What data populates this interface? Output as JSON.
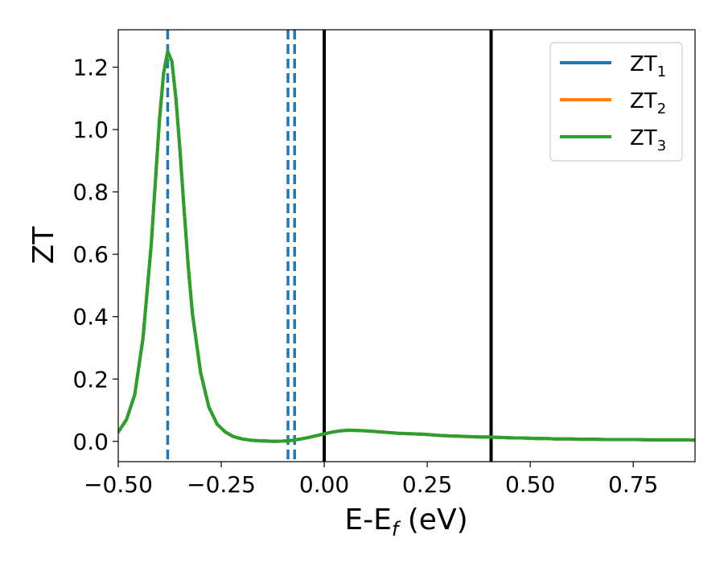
{
  "chart_data": {
    "type": "line",
    "title": "",
    "xlabel": "E-E",
    "xlabel_sub": "f",
    "xlabel_unit": " (eV)",
    "ylabel": "ZT",
    "xlim": [
      -0.5,
      0.9
    ],
    "ylim": [
      -0.065,
      1.32
    ],
    "xticks": [
      -0.5,
      -0.25,
      0.0,
      0.25,
      0.5,
      0.75
    ],
    "xtick_labels": [
      "−0.50",
      "−0.25",
      "0.00",
      "0.25",
      "0.50",
      "0.75"
    ],
    "yticks": [
      0.0,
      0.2,
      0.4,
      0.6,
      0.8,
      1.0,
      1.2
    ],
    "ytick_labels": [
      "0.0",
      "0.2",
      "0.4",
      "0.6",
      "0.8",
      "1.0",
      "1.2"
    ],
    "grid": false,
    "legend_position": "top-right",
    "series": [
      {
        "name": "ZT",
        "name_sub": "1",
        "color": "#1f77b4",
        "x": [
          -0.5,
          -0.48,
          -0.46,
          -0.44,
          -0.42,
          -0.41,
          -0.4,
          -0.39,
          -0.38,
          -0.37,
          -0.36,
          -0.35,
          -0.34,
          -0.33,
          -0.32,
          -0.3,
          -0.28,
          -0.26,
          -0.24,
          -0.22,
          -0.2,
          -0.18,
          -0.16,
          -0.14,
          -0.12,
          -0.1,
          -0.08,
          -0.06,
          -0.04,
          -0.02,
          0.0,
          0.02,
          0.04,
          0.06,
          0.08,
          0.1,
          0.12,
          0.14,
          0.16,
          0.18,
          0.2,
          0.22,
          0.24,
          0.26,
          0.28,
          0.3,
          0.32,
          0.34,
          0.36,
          0.38,
          0.4,
          0.42,
          0.44,
          0.46,
          0.48,
          0.5,
          0.52,
          0.54,
          0.56,
          0.58,
          0.6,
          0.62,
          0.64,
          0.66,
          0.68,
          0.7,
          0.72,
          0.74,
          0.76,
          0.78,
          0.8,
          0.82,
          0.84,
          0.86,
          0.88,
          0.9
        ],
        "y": [
          0.03,
          0.07,
          0.15,
          0.33,
          0.63,
          0.83,
          1.03,
          1.18,
          1.25,
          1.22,
          1.1,
          0.93,
          0.74,
          0.56,
          0.41,
          0.22,
          0.11,
          0.055,
          0.03,
          0.015,
          0.008,
          0.004,
          0.002,
          0.001,
          0.0,
          0.001,
          0.003,
          0.007,
          0.012,
          0.018,
          0.024,
          0.03,
          0.034,
          0.036,
          0.035,
          0.034,
          0.032,
          0.03,
          0.028,
          0.026,
          0.025,
          0.024,
          0.023,
          0.021,
          0.019,
          0.018,
          0.017,
          0.016,
          0.015,
          0.014,
          0.014,
          0.013,
          0.012,
          0.011,
          0.011,
          0.01,
          0.009,
          0.009,
          0.008,
          0.008,
          0.008,
          0.007,
          0.007,
          0.007,
          0.006,
          0.006,
          0.006,
          0.006,
          0.006,
          0.005,
          0.005,
          0.005,
          0.005,
          0.005,
          0.005,
          0.004
        ]
      },
      {
        "name": "ZT",
        "name_sub": "2",
        "color": "#ff7f0e",
        "x": [
          -0.5,
          -0.48,
          -0.46,
          -0.44,
          -0.42,
          -0.41,
          -0.4,
          -0.39,
          -0.38,
          -0.37,
          -0.36,
          -0.35,
          -0.34,
          -0.33,
          -0.32,
          -0.3,
          -0.28,
          -0.26,
          -0.24,
          -0.22,
          -0.2,
          -0.18,
          -0.16,
          -0.14,
          -0.12,
          -0.1,
          -0.08,
          -0.06,
          -0.04,
          -0.02,
          0.0,
          0.02,
          0.04,
          0.06,
          0.08,
          0.1,
          0.12,
          0.14,
          0.16,
          0.18,
          0.2,
          0.22,
          0.24,
          0.26,
          0.28,
          0.3,
          0.32,
          0.34,
          0.36,
          0.38,
          0.4,
          0.42,
          0.44,
          0.46,
          0.48,
          0.5,
          0.52,
          0.54,
          0.56,
          0.58,
          0.6,
          0.62,
          0.64,
          0.66,
          0.68,
          0.7,
          0.72,
          0.74,
          0.76,
          0.78,
          0.8,
          0.82,
          0.84,
          0.86,
          0.88,
          0.9
        ],
        "y": [
          0.03,
          0.07,
          0.15,
          0.33,
          0.63,
          0.83,
          1.03,
          1.18,
          1.25,
          1.22,
          1.1,
          0.93,
          0.74,
          0.56,
          0.41,
          0.22,
          0.11,
          0.055,
          0.03,
          0.015,
          0.008,
          0.004,
          0.002,
          0.001,
          0.0,
          0.001,
          0.003,
          0.007,
          0.012,
          0.018,
          0.024,
          0.03,
          0.034,
          0.036,
          0.035,
          0.034,
          0.032,
          0.03,
          0.028,
          0.026,
          0.025,
          0.024,
          0.023,
          0.021,
          0.019,
          0.018,
          0.017,
          0.016,
          0.015,
          0.014,
          0.014,
          0.013,
          0.012,
          0.011,
          0.011,
          0.01,
          0.009,
          0.009,
          0.008,
          0.008,
          0.008,
          0.007,
          0.007,
          0.007,
          0.006,
          0.006,
          0.006,
          0.006,
          0.006,
          0.005,
          0.005,
          0.005,
          0.005,
          0.005,
          0.005,
          0.004
        ]
      },
      {
        "name": "ZT",
        "name_sub": "3",
        "color": "#2ca02c",
        "x": [
          -0.5,
          -0.48,
          -0.46,
          -0.44,
          -0.42,
          -0.41,
          -0.4,
          -0.39,
          -0.38,
          -0.37,
          -0.36,
          -0.35,
          -0.34,
          -0.33,
          -0.32,
          -0.3,
          -0.28,
          -0.26,
          -0.24,
          -0.22,
          -0.2,
          -0.18,
          -0.16,
          -0.14,
          -0.12,
          -0.1,
          -0.08,
          -0.06,
          -0.04,
          -0.02,
          0.0,
          0.02,
          0.04,
          0.06,
          0.08,
          0.1,
          0.12,
          0.14,
          0.16,
          0.18,
          0.2,
          0.22,
          0.24,
          0.26,
          0.28,
          0.3,
          0.32,
          0.34,
          0.36,
          0.38,
          0.4,
          0.42,
          0.44,
          0.46,
          0.48,
          0.5,
          0.52,
          0.54,
          0.56,
          0.58,
          0.6,
          0.62,
          0.64,
          0.66,
          0.68,
          0.7,
          0.72,
          0.74,
          0.76,
          0.78,
          0.8,
          0.82,
          0.84,
          0.86,
          0.88,
          0.9
        ],
        "y": [
          0.03,
          0.07,
          0.15,
          0.33,
          0.63,
          0.83,
          1.03,
          1.18,
          1.25,
          1.22,
          1.1,
          0.93,
          0.74,
          0.56,
          0.41,
          0.22,
          0.11,
          0.055,
          0.03,
          0.015,
          0.008,
          0.004,
          0.002,
          0.001,
          0.0,
          0.001,
          0.003,
          0.007,
          0.012,
          0.018,
          0.024,
          0.03,
          0.034,
          0.036,
          0.035,
          0.034,
          0.032,
          0.03,
          0.028,
          0.026,
          0.025,
          0.024,
          0.023,
          0.021,
          0.019,
          0.018,
          0.017,
          0.016,
          0.015,
          0.014,
          0.014,
          0.013,
          0.012,
          0.011,
          0.011,
          0.01,
          0.009,
          0.009,
          0.008,
          0.008,
          0.008,
          0.007,
          0.007,
          0.007,
          0.006,
          0.006,
          0.006,
          0.006,
          0.006,
          0.005,
          0.005,
          0.005,
          0.005,
          0.005,
          0.005,
          0.004
        ]
      }
    ],
    "vlines": [
      {
        "x": -0.38,
        "style": "dashed",
        "color": "#1f77b4"
      },
      {
        "x": -0.088,
        "style": "dashed",
        "color": "#1f77b4"
      },
      {
        "x": -0.072,
        "style": "dashed",
        "color": "#1f77b4"
      },
      {
        "x": 0.0,
        "style": "solid",
        "color": "#000000"
      },
      {
        "x": 0.405,
        "style": "solid",
        "color": "#000000"
      }
    ]
  }
}
